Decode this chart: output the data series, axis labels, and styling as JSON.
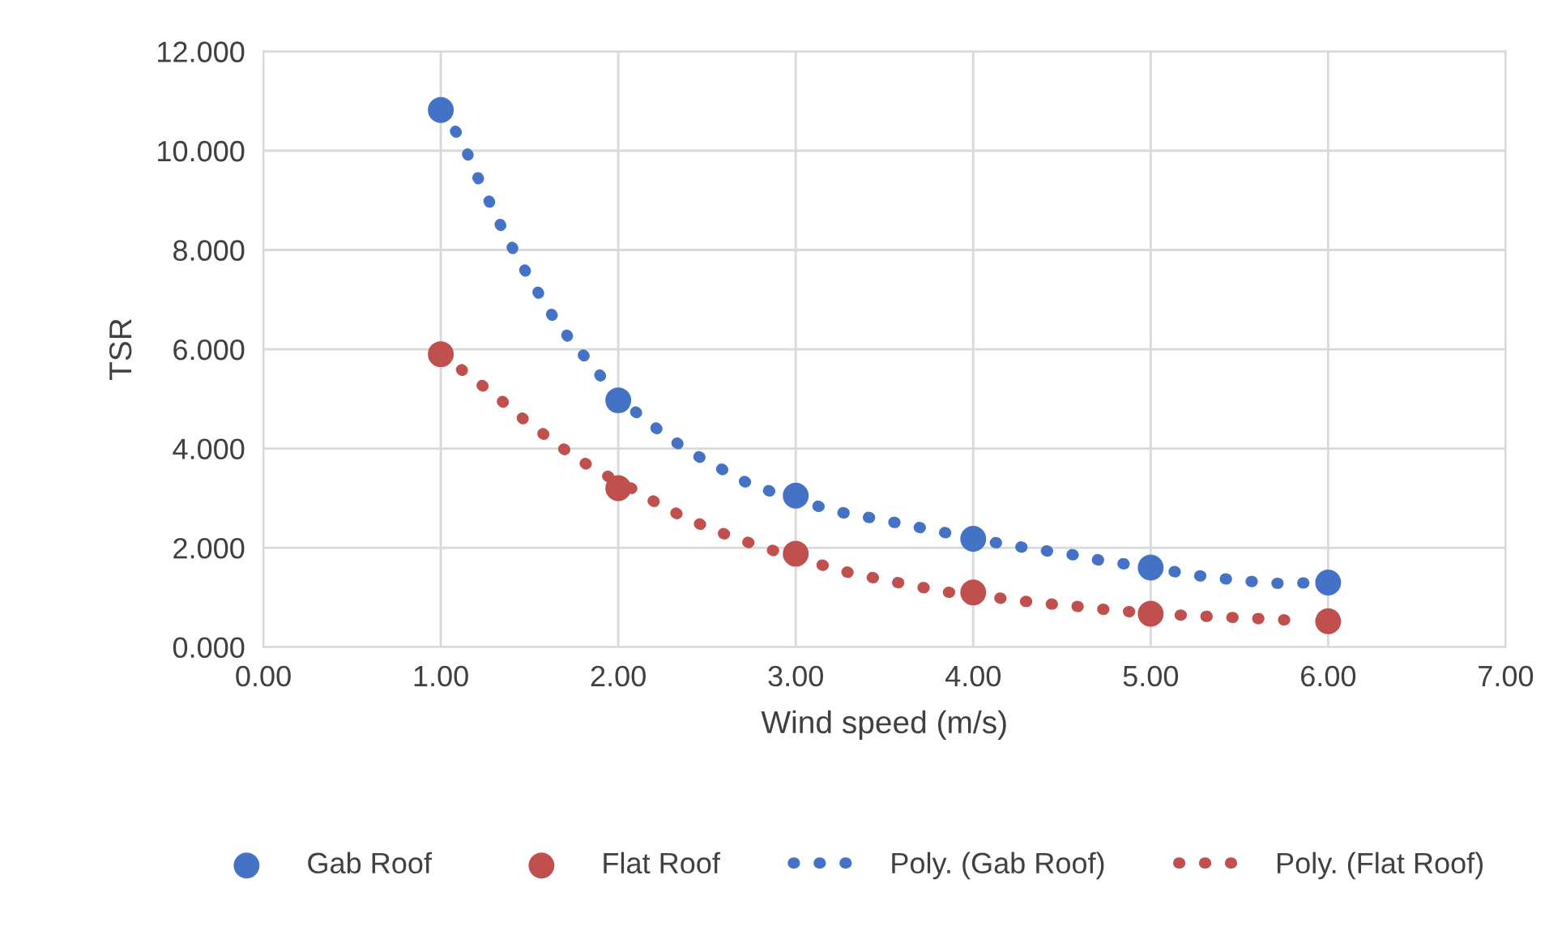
{
  "chart_data": {
    "type": "scatter",
    "xlabel": "Wind speed (m/s)",
    "ylabel": "TSR",
    "xlim": [
      0,
      7
    ],
    "ylim": [
      0,
      12
    ],
    "xticks": [
      {
        "value": 0,
        "label": "0.00"
      },
      {
        "value": 1,
        "label": "1.00"
      },
      {
        "value": 2,
        "label": "2.00"
      },
      {
        "value": 3,
        "label": "3.00"
      },
      {
        "value": 4,
        "label": "4.00"
      },
      {
        "value": 5,
        "label": "5.00"
      },
      {
        "value": 6,
        "label": "6.00"
      },
      {
        "value": 7,
        "label": "7.00"
      }
    ],
    "yticks": [
      {
        "value": 0,
        "label": "0.000"
      },
      {
        "value": 2,
        "label": "2.000"
      },
      {
        "value": 4,
        "label": "4.000"
      },
      {
        "value": 6,
        "label": "6.000"
      },
      {
        "value": 8,
        "label": "8.000"
      },
      {
        "value": 10,
        "label": "10.000"
      },
      {
        "value": 12,
        "label": "12.000"
      }
    ],
    "grid": true,
    "legend": "bottom",
    "marker": "circle",
    "x": [
      1,
      2,
      3,
      4,
      5,
      6
    ],
    "series": [
      {
        "name": "Gab Roof",
        "color": "#4472c4",
        "values": [
          10.82,
          4.97,
          3.05,
          2.18,
          1.6,
          1.3
        ]
      },
      {
        "name": "Flat Roof",
        "color": "#c0504d",
        "values": [
          5.9,
          3.2,
          1.88,
          1.1,
          0.67,
          0.52
        ]
      },
      {
        "name": "Poly. (Gab Roof)",
        "type": "line",
        "line_style": "dotted",
        "marker": "none",
        "color": "#4472c4",
        "x": [
          1.0,
          1.12,
          1.19,
          1.27,
          1.35,
          1.44,
          1.53,
          1.63,
          1.74,
          1.86,
          1.97,
          2.11,
          2.26,
          2.41,
          2.58,
          2.73,
          2.91,
          3.08,
          3.26,
          3.46,
          3.64,
          3.82,
          4.0,
          4.19,
          4.37,
          4.56,
          4.74,
          4.94,
          5.1,
          5.26,
          5.43,
          5.6,
          5.78,
          5.93
        ],
        "values": [
          10.82,
          10.2,
          9.6,
          9.0,
          8.4,
          7.8,
          7.25,
          6.67,
          6.14,
          5.65,
          5.13,
          4.7,
          4.28,
          3.92,
          3.59,
          3.3,
          3.07,
          2.88,
          2.71,
          2.58,
          2.45,
          2.32,
          2.19,
          2.06,
          1.96,
          1.86,
          1.73,
          1.63,
          1.54,
          1.44,
          1.37,
          1.31,
          1.27,
          1.31
        ]
      },
      {
        "name": "Poly. (Flat Roof)",
        "type": "line",
        "line_style": "dotted",
        "marker": "none",
        "color": "#c0504d",
        "x": [
          1.0,
          1.19,
          1.33,
          1.47,
          1.62,
          1.77,
          1.93,
          2.09,
          2.26,
          2.41,
          2.59,
          2.77,
          2.95,
          3.13,
          3.3,
          3.47,
          3.66,
          3.84,
          4.04,
          4.21,
          4.4,
          4.58,
          4.76,
          4.95,
          5.13,
          5.3,
          5.49,
          5.69,
          5.88
        ],
        "values": [
          5.9,
          5.39,
          5.0,
          4.58,
          4.18,
          3.79,
          3.46,
          3.17,
          2.81,
          2.55,
          2.29,
          2.06,
          1.86,
          1.67,
          1.5,
          1.37,
          1.24,
          1.11,
          1.05,
          0.95,
          0.88,
          0.82,
          0.75,
          0.69,
          0.65,
          0.62,
          0.59,
          0.56,
          0.52
        ]
      }
    ]
  }
}
